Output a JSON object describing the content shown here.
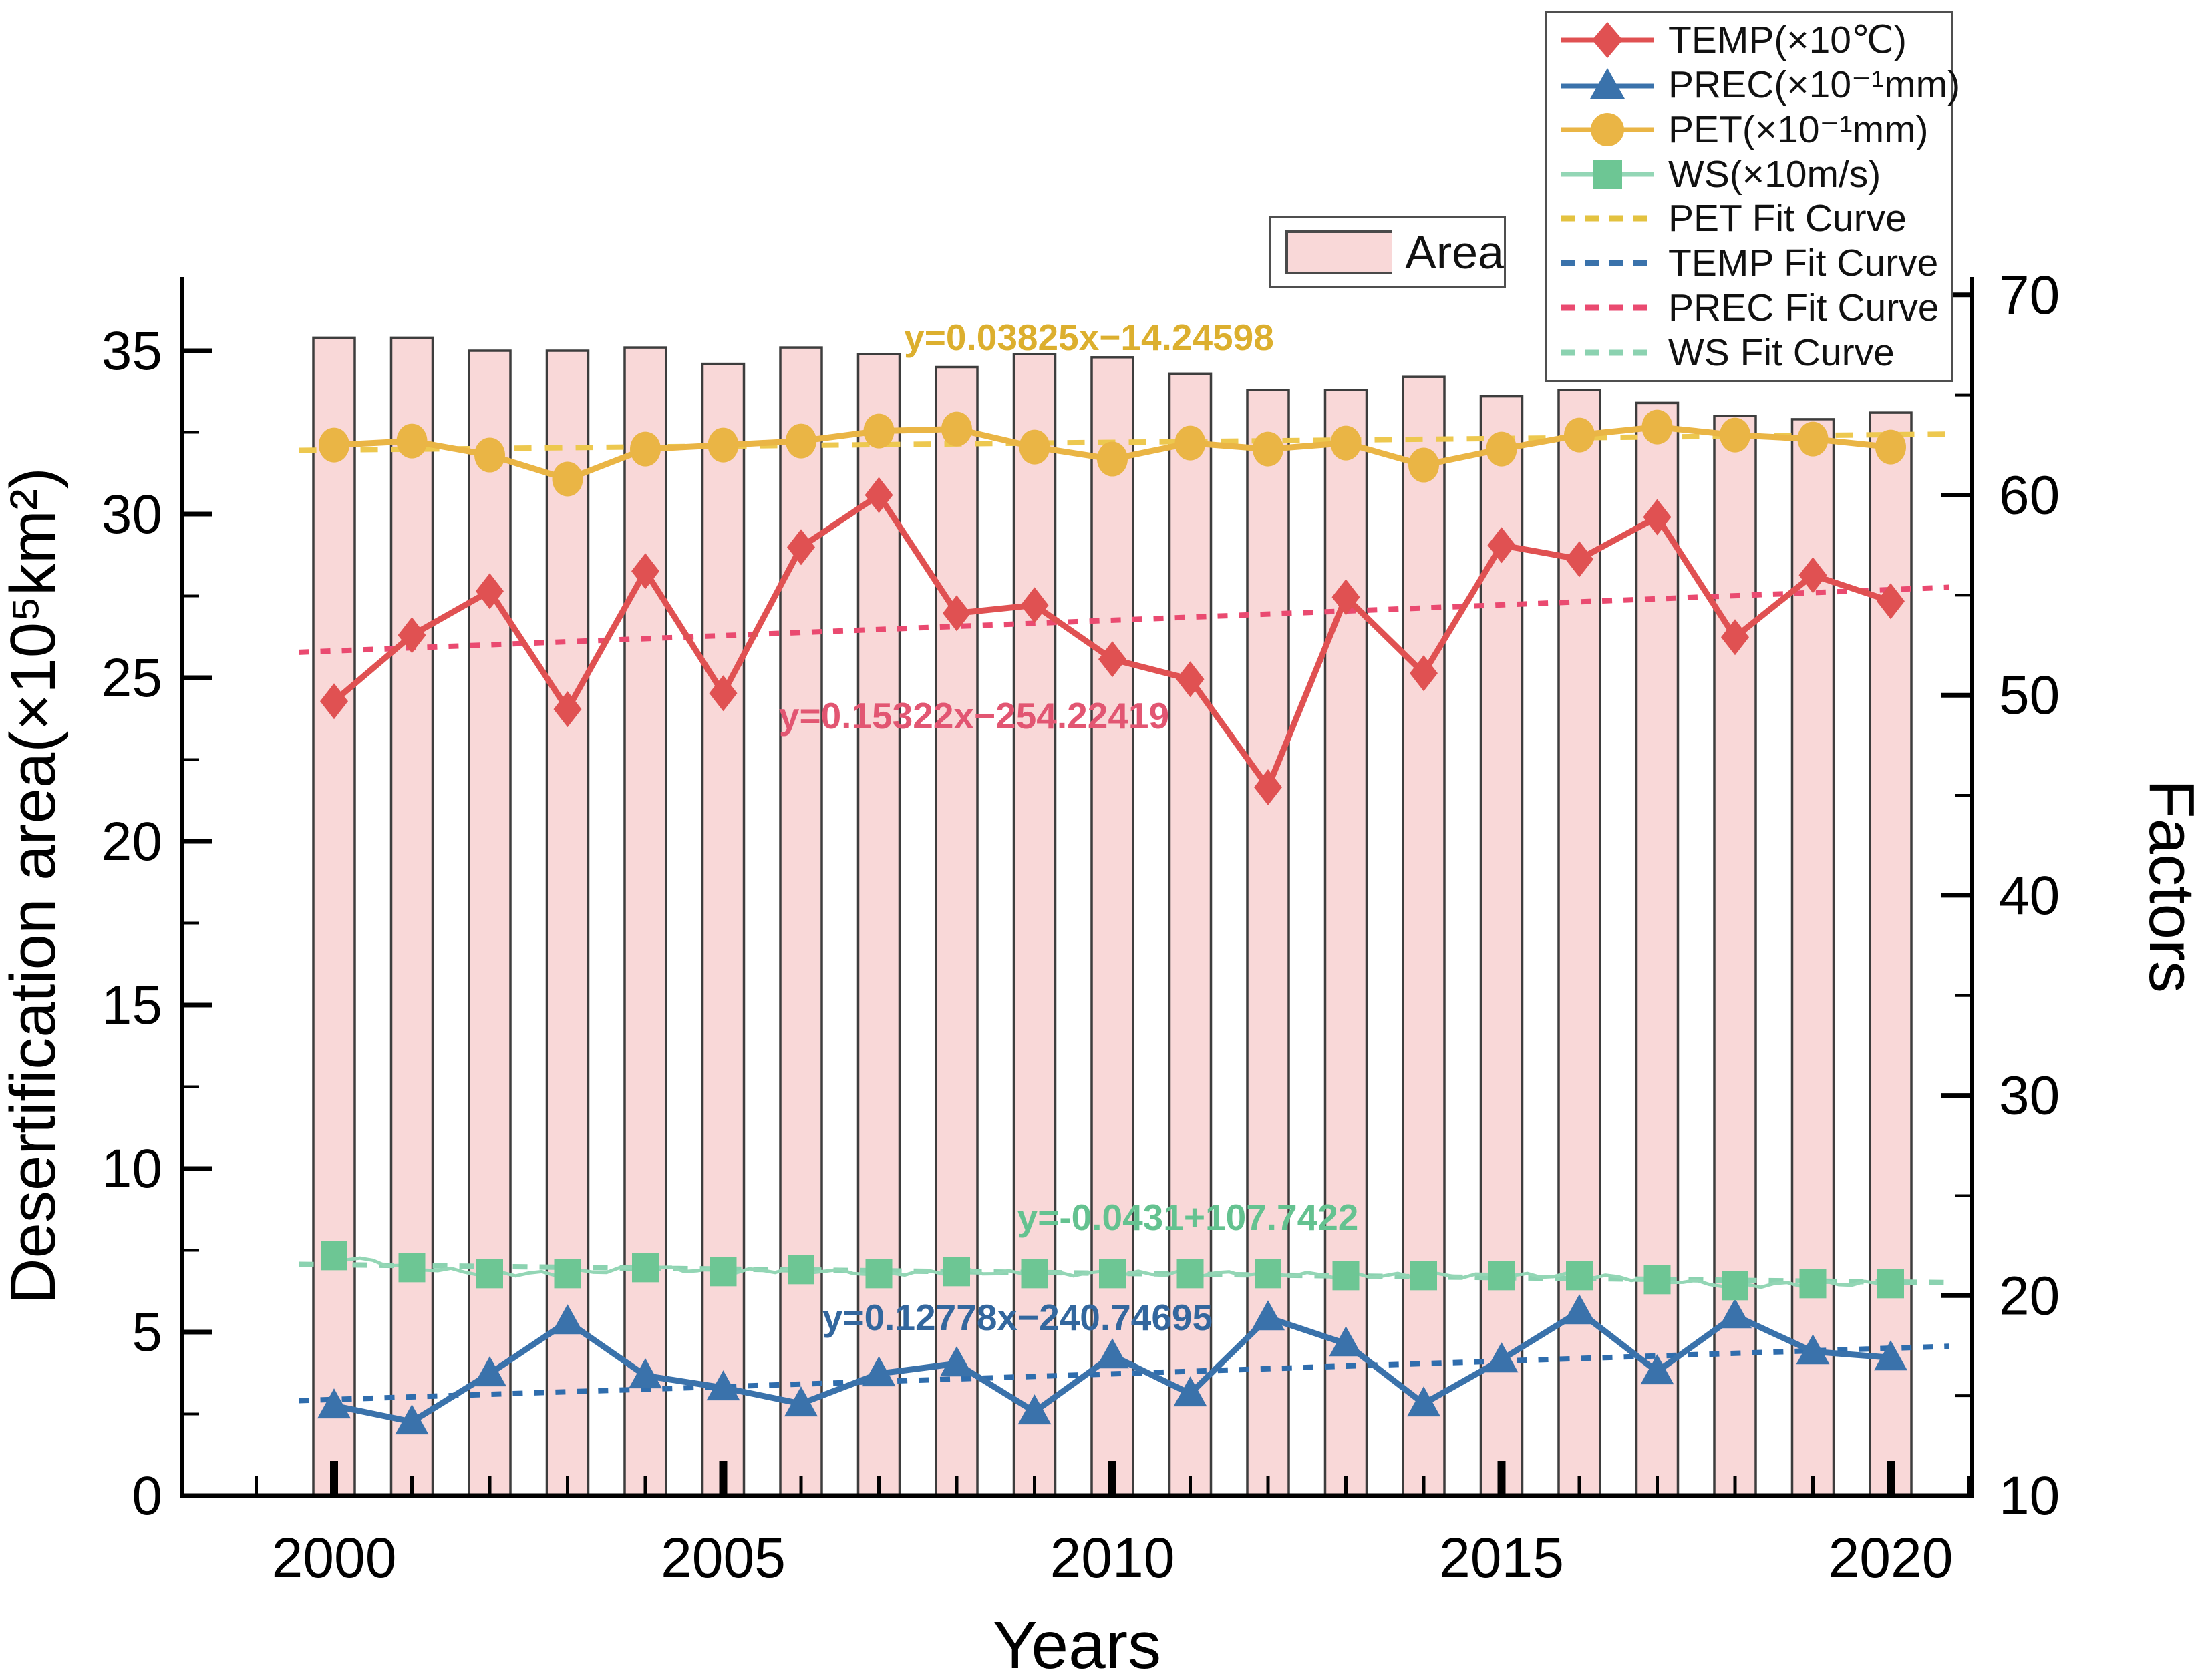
{
  "chart_data": {
    "type": "composite",
    "subtype": "bar + line series with linear fit curves",
    "title": "",
    "axes": {
      "x": {
        "label": "Years",
        "major_ticks": [
          "2000",
          "2005",
          "2010",
          "2015",
          "2020"
        ],
        "minor_tick_every_year": true,
        "range": [
          1998.0,
          2021.3
        ]
      },
      "left": {
        "label": "Desertification area(×10⁵km²)",
        "ticks": [
          "0",
          "5",
          "10",
          "15",
          "20",
          "25",
          "30",
          "35"
        ],
        "range": [
          0,
          37.2
        ]
      },
      "right": {
        "label": "Factors",
        "ticks": [
          "10",
          "20",
          "30",
          "40",
          "50",
          "60",
          "70"
        ],
        "range": [
          10,
          70.7
        ]
      }
    },
    "x_years": [
      2000,
      2001,
      2002,
      2003,
      2004,
      2005,
      2006,
      2007,
      2008,
      2009,
      2010,
      2011,
      2012,
      2013,
      2014,
      2015,
      2016,
      2017,
      2018,
      2019,
      2020
    ],
    "bar_series": {
      "name": "Area",
      "axis": "left",
      "fill": "#f9d8d8",
      "border": "#3d3d3d",
      "values": [
        35.4,
        35.4,
        35.0,
        35.0,
        35.1,
        34.6,
        35.1,
        34.9,
        34.5,
        34.9,
        34.8,
        34.3,
        33.8,
        33.8,
        34.2,
        33.6,
        33.8,
        33.4,
        33.0,
        32.9,
        33.1
      ]
    },
    "line_series": [
      {
        "name": "TEMP(×10℃)",
        "axis": "right",
        "marker": "diamond",
        "color": "#e05152",
        "values": [
          49.7,
          53.0,
          55.2,
          49.3,
          56.2,
          50.1,
          57.4,
          60.0,
          54.1,
          54.5,
          51.8,
          50.8,
          45.4,
          54.9,
          51.1,
          57.5,
          56.8,
          58.9,
          52.9,
          56.0,
          54.7
        ]
      },
      {
        "name": "PREC(×10⁻¹mm)",
        "axis": "right",
        "marker": "triangle",
        "color": "#3a72ab",
        "values": [
          14.5,
          13.7,
          16.1,
          18.7,
          16.0,
          15.4,
          14.6,
          16.1,
          16.6,
          14.2,
          17.0,
          15.1,
          18.9,
          17.6,
          14.6,
          16.8,
          19.2,
          16.2,
          19.0,
          17.2,
          16.9
        ]
      },
      {
        "name": "PET(×10⁻¹mm)",
        "axis": "right",
        "marker": "circle",
        "color": "#eab545",
        "values": [
          62.5,
          62.7,
          62.0,
          60.8,
          62.3,
          62.5,
          62.7,
          63.2,
          63.3,
          62.4,
          61.8,
          62.6,
          62.3,
          62.6,
          61.5,
          62.3,
          63.0,
          63.4,
          63.0,
          62.8,
          62.4
        ]
      },
      {
        "name": "WS(×10m/s)",
        "axis": "right",
        "marker": "square",
        "color": "#6dc694",
        "line_color": "#93d6b5",
        "values": [
          22.0,
          21.4,
          21.1,
          21.1,
          21.4,
          21.2,
          21.3,
          21.1,
          21.2,
          21.1,
          21.1,
          21.1,
          21.1,
          21.0,
          21.0,
          21.0,
          21.0,
          20.8,
          20.5,
          20.6,
          20.6
        ]
      }
    ],
    "fit_lines": [
      {
        "name": "PET Fit Curve",
        "color": "#edc84f",
        "slope": 0.03825,
        "intercept": -14.24598,
        "equation": "y=0.03825x−14.24598"
      },
      {
        "name": "TEMP Fit Curve",
        "color": "#ea4a70",
        "slope": 0.15322,
        "intercept": -254.22419,
        "equation": "y=0.15322x−254.22419"
      },
      {
        "name": "PREC Fit Curve",
        "color": "#2f6dad",
        "slope": 0.12778,
        "intercept": -240.74695,
        "equation": "y=0.12778x−240.74695"
      },
      {
        "name": "WS Fit Curve",
        "color": "#8bd2b0",
        "slope": -0.0431,
        "intercept": 107.7422,
        "equation": "y=-0.0431+107.7422"
      }
    ],
    "legend_position": "top-right"
  },
  "legend": {
    "area_label": "Area",
    "items": [
      {
        "label": "TEMP(×10℃)",
        "swatch": "line-diamond",
        "color": "#e05152"
      },
      {
        "label": "PREC(×10⁻¹mm)",
        "swatch": "line-triangle",
        "color": "#3a72ab"
      },
      {
        "label": "PET(×10⁻¹mm)",
        "swatch": "line-circle",
        "color": "#eab545"
      },
      {
        "label": "WS(×10m/s)",
        "swatch": "line-square",
        "color": "#6dc694"
      },
      {
        "label": "PET Fit Curve",
        "swatch": "dashed",
        "color": "#e3c23f"
      },
      {
        "label": "TEMP Fit Curve",
        "swatch": "dashed",
        "color": "#3a72ab"
      },
      {
        "label": "PREC Fit Curve",
        "swatch": "dashed",
        "color": "#ea4a70"
      },
      {
        "label": "WS Fit Curve",
        "swatch": "dashed",
        "color": "#8bd2b0"
      }
    ]
  },
  "annotations": {
    "pet": "y=0.03825x−14.24598",
    "temp": "y=0.15322x−254.22419",
    "ws": "y=-0.0431+107.7422",
    "prec": "y=0.12778x−240.74695"
  },
  "axis_titles": {
    "x": "Years",
    "left": "Desertification area(×10⁵km²)",
    "right": "Factors"
  }
}
